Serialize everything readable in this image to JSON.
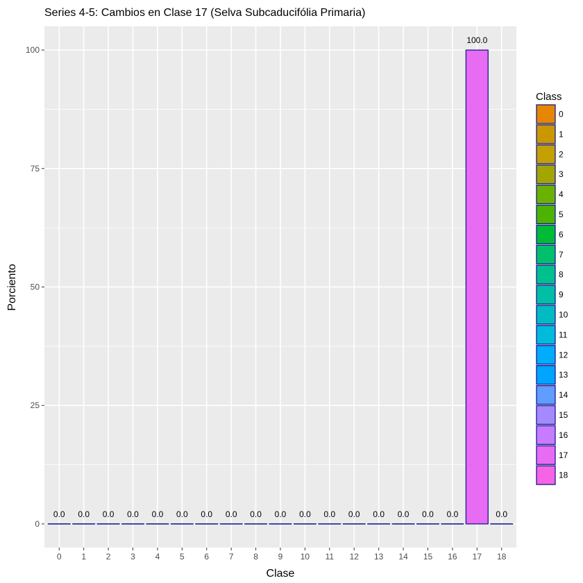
{
  "chart_data": {
    "type": "bar",
    "title": "Series 4-5: Cambios en Clase 17 (Selva Subcaducifólia Primaria)",
    "xlabel": "Clase",
    "ylabel": "Porciento",
    "categories": [
      "0",
      "1",
      "2",
      "3",
      "4",
      "5",
      "6",
      "7",
      "8",
      "9",
      "10",
      "11",
      "12",
      "13",
      "14",
      "15",
      "16",
      "17",
      "18"
    ],
    "values": [
      0,
      0,
      0,
      0,
      0,
      0,
      0,
      0,
      0,
      0,
      0,
      0,
      0,
      0,
      0,
      0,
      0,
      100,
      0
    ],
    "value_labels": [
      "0.0",
      "0.0",
      "0.0",
      "0.0",
      "0.0",
      "0.0",
      "0.0",
      "0.0",
      "0.0",
      "0.0",
      "0.0",
      "0.0",
      "0.0",
      "0.0",
      "0.0",
      "0.0",
      "0.0",
      "100.0",
      "0.0"
    ],
    "colors": [
      "#E58700",
      "#C99800",
      "#C4A000",
      "#A3A500",
      "#6BB100",
      "#4CB400",
      "#00BA38",
      "#00C06B",
      "#00C08D",
      "#00BFA5",
      "#00BCC2",
      "#00BBDB",
      "#00ACFC",
      "#00A5FF",
      "#619CFF",
      "#A58AFF",
      "#C77CFF",
      "#E76BF3",
      "#F564E3"
    ],
    "bar_outline": "#1a1a8c",
    "ylim": [
      -5,
      105
    ],
    "yticks": [
      0,
      25,
      50,
      75,
      100
    ],
    "grid": true,
    "legend": {
      "title": "Class",
      "position": "right"
    }
  }
}
